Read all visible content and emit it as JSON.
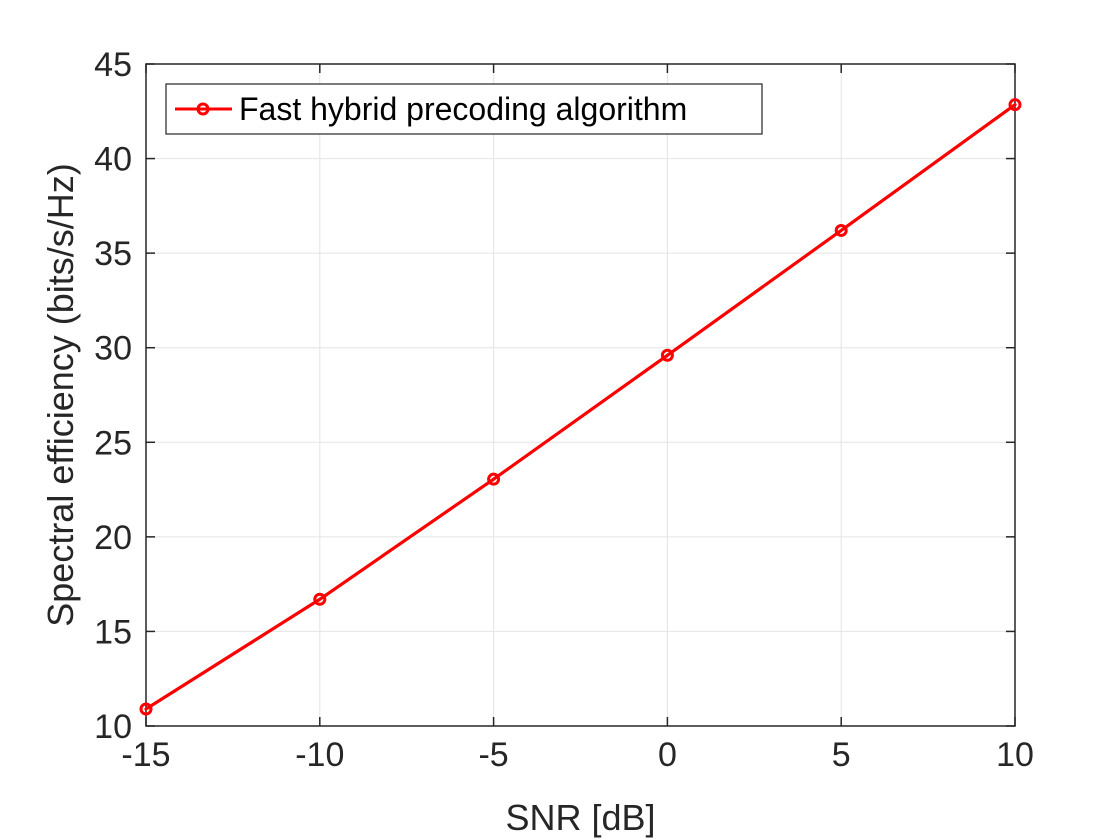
{
  "chart_data": {
    "type": "line",
    "title": "",
    "xlabel": "SNR [dB]",
    "ylabel": "Spectral efficiency (bits/s/Hz)",
    "xlim": [
      -15,
      10
    ],
    "ylim": [
      10,
      45
    ],
    "xticks": [
      -15,
      -10,
      -5,
      0,
      5,
      10
    ],
    "xtick_labels": [
      "-15",
      "-10",
      "-5",
      "0",
      "5",
      "10"
    ],
    "yticks": [
      10,
      15,
      20,
      25,
      30,
      35,
      40,
      45
    ],
    "ytick_labels": [
      "10",
      "15",
      "20",
      "25",
      "30",
      "35",
      "40",
      "45"
    ],
    "grid": true,
    "legend_position": "top-left",
    "x": [
      -15,
      -10,
      -5,
      0,
      5,
      10
    ],
    "series": [
      {
        "name": "Fast hybrid precoding algorithm",
        "color": "#ff0000",
        "marker": "circle",
        "values": [
          10.9,
          16.7,
          23.05,
          29.6,
          36.2,
          42.85
        ]
      }
    ]
  }
}
